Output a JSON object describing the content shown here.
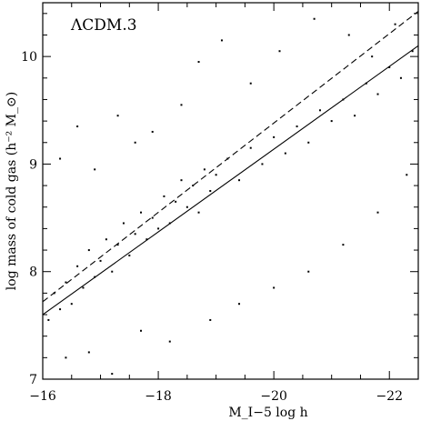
{
  "chart_data": {
    "type": "scatter",
    "title": "ΛCDM.3",
    "xlabel": "M_I−5 log h",
    "ylabel": "log mass of cold gas (h⁻² M_⊙)",
    "xlim": [
      -16,
      -22.5
    ],
    "ylim": [
      7,
      10.5
    ],
    "xticks": [
      -16,
      -18,
      -20,
      -22
    ],
    "yticks": [
      7,
      8,
      9,
      10
    ],
    "x_tick_labels": [
      "−16",
      "−18",
      "−20",
      "−22"
    ],
    "y_tick_labels": [
      "7",
      "8",
      "9",
      "10"
    ],
    "grid": false,
    "series": [
      {
        "kind": "scatter",
        "points": [
          [
            -16.1,
            7.55
          ],
          [
            -16.2,
            7.8
          ],
          [
            -16.3,
            7.65
          ],
          [
            -16.4,
            7.9
          ],
          [
            -16.5,
            7.7
          ],
          [
            -16.6,
            8.05
          ],
          [
            -16.7,
            7.85
          ],
          [
            -16.8,
            8.2
          ],
          [
            -16.9,
            7.95
          ],
          [
            -17.0,
            8.1
          ],
          [
            -17.1,
            8.3
          ],
          [
            -17.2,
            8.0
          ],
          [
            -17.3,
            8.25
          ],
          [
            -17.4,
            8.45
          ],
          [
            -17.5,
            8.15
          ],
          [
            -17.6,
            8.35
          ],
          [
            -17.7,
            8.55
          ],
          [
            -17.8,
            8.3
          ],
          [
            -17.9,
            8.5
          ],
          [
            -18.0,
            8.4
          ],
          [
            -18.1,
            8.7
          ],
          [
            -18.2,
            8.45
          ],
          [
            -18.3,
            8.65
          ],
          [
            -18.4,
            8.85
          ],
          [
            -18.5,
            8.6
          ],
          [
            -18.6,
            8.8
          ],
          [
            -18.7,
            8.55
          ],
          [
            -18.8,
            8.95
          ],
          [
            -18.9,
            8.75
          ],
          [
            -19.0,
            8.9
          ],
          [
            -19.2,
            9.05
          ],
          [
            -19.4,
            8.85
          ],
          [
            -19.6,
            9.15
          ],
          [
            -19.8,
            9.0
          ],
          [
            -20.0,
            9.25
          ],
          [
            -20.2,
            9.1
          ],
          [
            -20.4,
            9.35
          ],
          [
            -20.6,
            9.2
          ],
          [
            -20.8,
            9.5
          ],
          [
            -21.0,
            9.4
          ],
          [
            -21.2,
            9.6
          ],
          [
            -21.4,
            9.45
          ],
          [
            -21.6,
            9.75
          ],
          [
            -21.8,
            9.65
          ],
          [
            -22.0,
            9.9
          ],
          [
            -22.2,
            9.8
          ],
          [
            -22.4,
            10.05
          ],
          [
            -16.3,
            9.05
          ],
          [
            -16.6,
            9.35
          ],
          [
            -16.9,
            8.95
          ],
          [
            -17.3,
            9.45
          ],
          [
            -17.6,
            9.2
          ],
          [
            -17.9,
            9.3
          ],
          [
            -18.4,
            9.55
          ],
          [
            -18.7,
            9.95
          ],
          [
            -19.1,
            10.15
          ],
          [
            -19.6,
            9.75
          ],
          [
            -20.1,
            10.05
          ],
          [
            -20.7,
            10.35
          ],
          [
            -21.3,
            10.2
          ],
          [
            -21.7,
            10.0
          ],
          [
            -22.1,
            10.3
          ],
          [
            -16.4,
            7.2
          ],
          [
            -16.8,
            7.25
          ],
          [
            -17.2,
            7.05
          ],
          [
            -17.7,
            7.45
          ],
          [
            -18.2,
            7.35
          ],
          [
            -18.9,
            7.55
          ],
          [
            -19.4,
            7.7
          ],
          [
            -20.0,
            7.85
          ],
          [
            -20.6,
            8.0
          ],
          [
            -21.2,
            8.25
          ],
          [
            -21.8,
            8.55
          ],
          [
            -22.3,
            8.9
          ]
        ]
      },
      {
        "kind": "line",
        "style": "solid",
        "points": [
          [
            -16.0,
            7.6
          ],
          [
            -22.5,
            10.1
          ]
        ]
      },
      {
        "kind": "line",
        "style": "dashed",
        "points": [
          [
            -16.0,
            7.72
          ],
          [
            -22.5,
            10.42
          ]
        ]
      }
    ]
  }
}
